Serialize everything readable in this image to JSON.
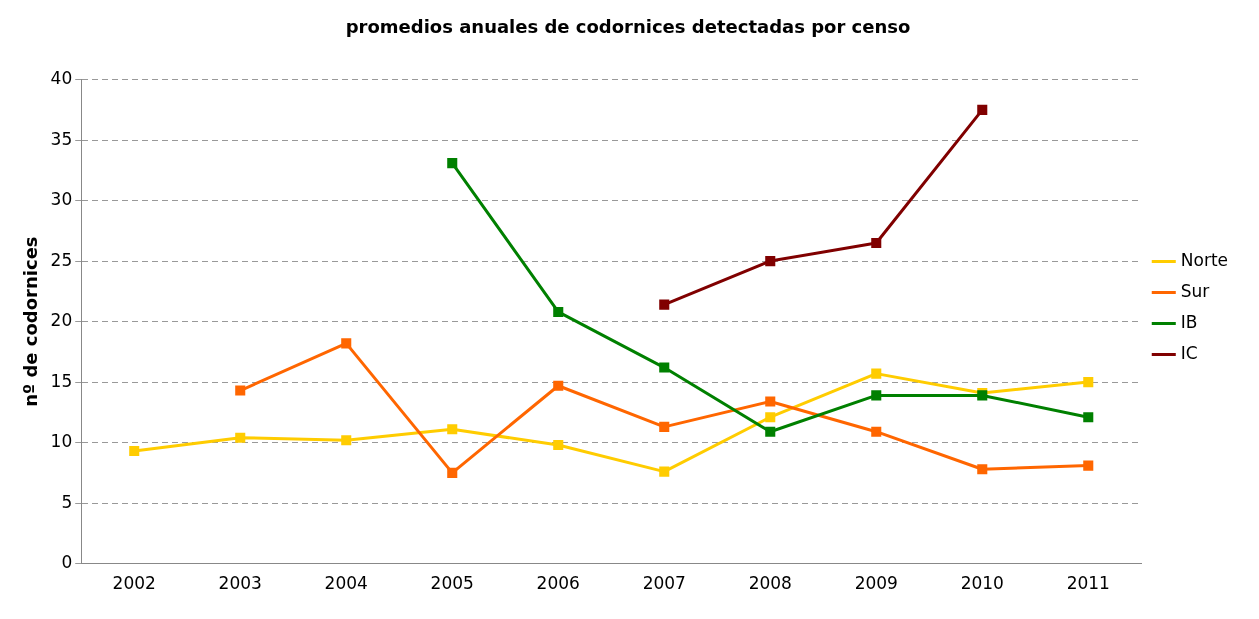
{
  "chart_data": {
    "type": "line",
    "title": "promedios anuales de codornices detectadas por censo",
    "ylabel": "nº de codornices",
    "categories": [
      "2002",
      "2003",
      "2004",
      "2005",
      "2006",
      "2007",
      "2008",
      "2009",
      "2010",
      "2011"
    ],
    "series": [
      {
        "name": "Norte",
        "color": "#ffcc00",
        "values": [
          9.3,
          10.4,
          10.2,
          11.1,
          9.8,
          7.6,
          12.1,
          15.7,
          14.1,
          15.0
        ]
      },
      {
        "name": "Sur",
        "color": "#ff6600",
        "values": [
          null,
          14.3,
          18.2,
          7.5,
          14.7,
          11.3,
          13.4,
          10.9,
          7.8,
          8.1
        ]
      },
      {
        "name": "IB",
        "color": "#008000",
        "values": [
          null,
          null,
          null,
          33.1,
          20.8,
          16.2,
          10.9,
          13.9,
          13.9,
          12.1
        ]
      },
      {
        "name": "IC",
        "color": "#800000",
        "values": [
          null,
          null,
          null,
          null,
          null,
          21.4,
          25.0,
          26.5,
          37.5,
          null
        ]
      }
    ],
    "ylim": [
      0,
      40
    ],
    "yticks": [
      0,
      5,
      10,
      15,
      20,
      25,
      30,
      35,
      40
    ],
    "grid": "y",
    "legend": "right",
    "marker": "square",
    "line_style": "solid"
  }
}
